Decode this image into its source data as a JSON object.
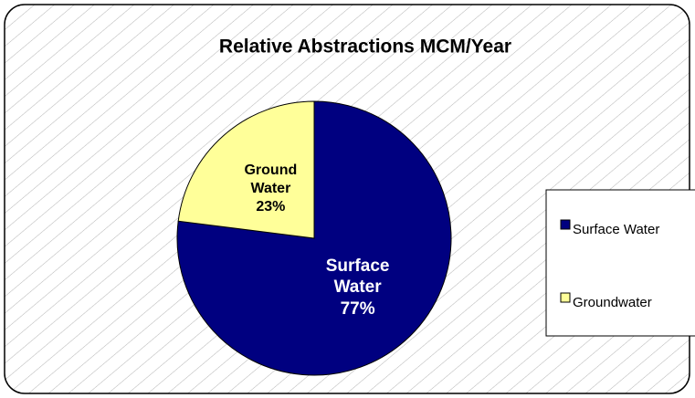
{
  "chart_data": {
    "type": "pie",
    "title": "Relative Abstractions MCM/Year",
    "categories": [
      "Surface Water",
      "Groundwater"
    ],
    "slice_labels": [
      "Surface Water",
      "Ground Water"
    ],
    "values": [
      77,
      23
    ],
    "value_labels": [
      "77%",
      "23%"
    ],
    "colors": [
      "#000080",
      "#ffff99"
    ],
    "label_colors": [
      "#ffffff",
      "#000000"
    ],
    "legend": "right"
  }
}
